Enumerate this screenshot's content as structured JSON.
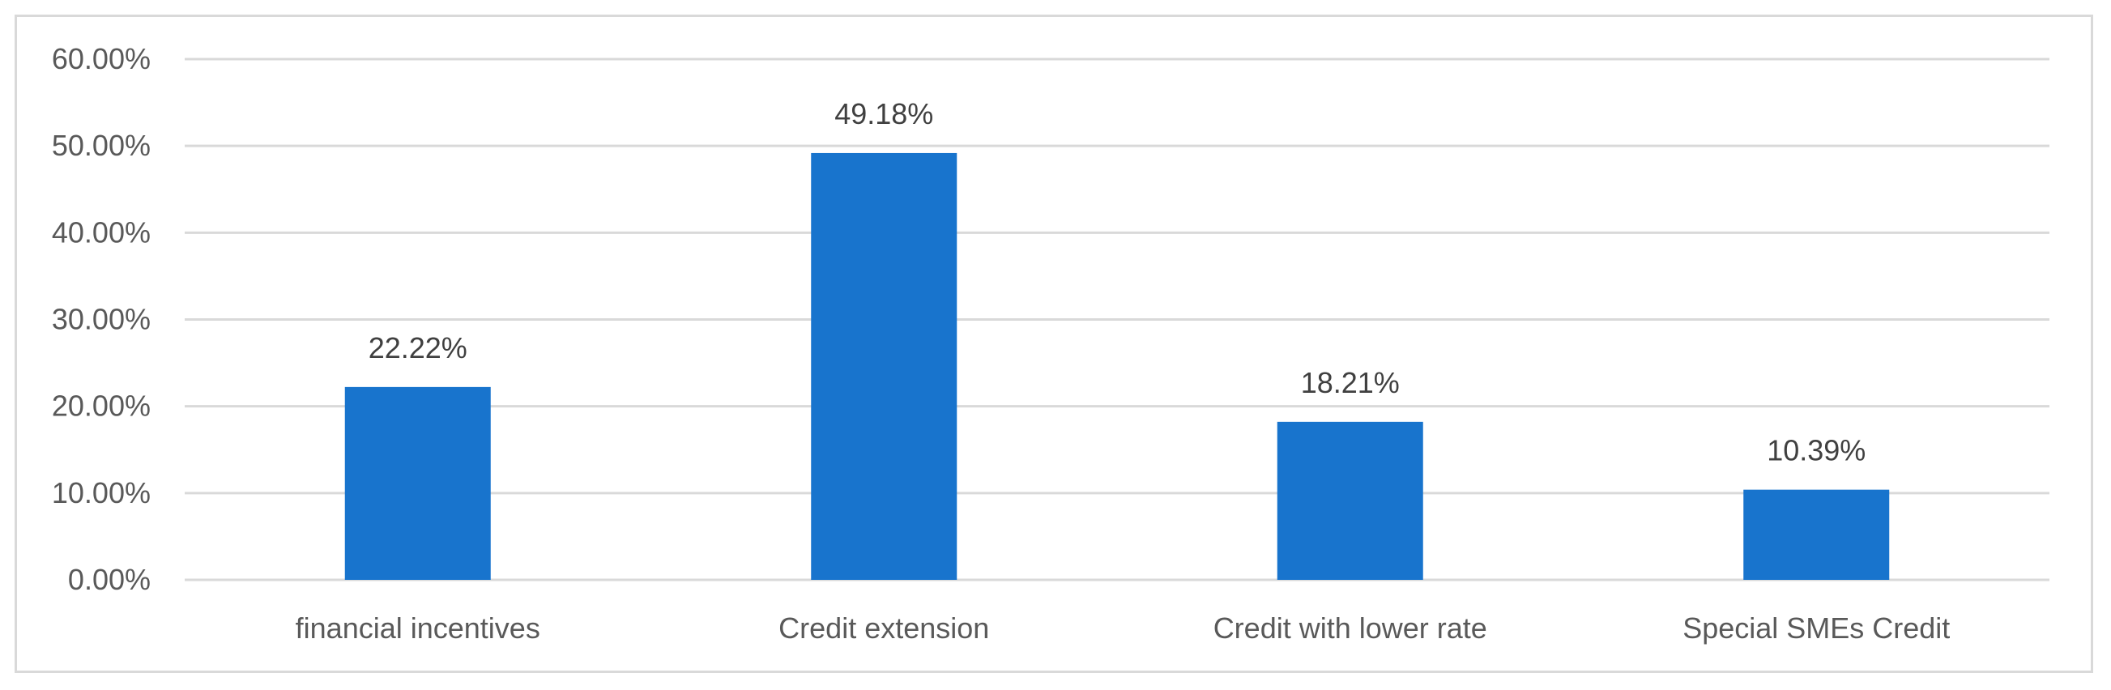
{
  "chart_data": {
    "type": "bar",
    "title": "",
    "xlabel": "",
    "ylabel": "",
    "categories": [
      "financial incentives",
      "Credit extension",
      "Credit with lower rate",
      "Special SMEs Credit"
    ],
    "values": [
      22.22,
      49.18,
      18.21,
      10.39
    ],
    "data_labels": [
      "22.22%",
      "49.18%",
      "18.21%",
      "10.39%"
    ],
    "ylim": [
      0,
      60
    ],
    "yticks": [
      0,
      10,
      20,
      30,
      40,
      50,
      60
    ],
    "ytick_labels": [
      "0.00%",
      "10.00%",
      "20.00%",
      "30.00%",
      "40.00%",
      "50.00%",
      "60.00%"
    ],
    "grid": true,
    "legend": "none",
    "bar_color": "#1874CD"
  }
}
